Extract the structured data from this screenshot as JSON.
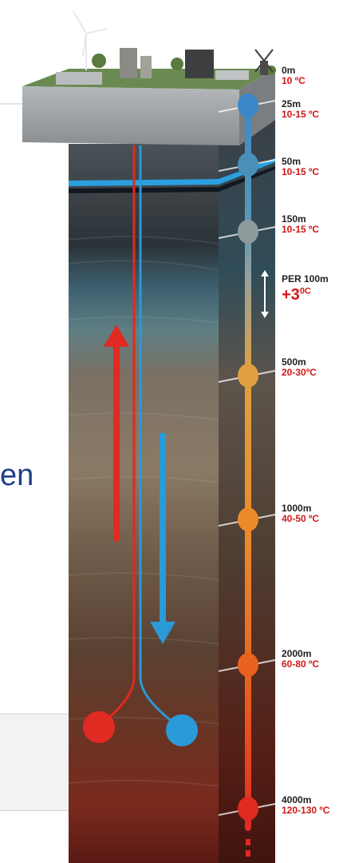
{
  "fragment_text": "en",
  "gradient": {
    "per_label": "PER 100m",
    "delta": "+3",
    "delta_unit": "0C"
  },
  "depth_markers": [
    {
      "depth": "0m",
      "temp": "10 ºC",
      "dot_color": null
    },
    {
      "depth": "25m",
      "temp": "10-15 ºC",
      "dot_color": "#3a86c8"
    },
    {
      "depth": "50m",
      "temp": "10-15 ºC",
      "dot_color": "#4a8fb8"
    },
    {
      "depth": "150m",
      "temp": "10-15 ºC",
      "dot_color": "#8e9a9c"
    },
    {
      "depth": "500m",
      "temp": "20-30ºC",
      "dot_color": "#e0a040"
    },
    {
      "depth": "1000m",
      "temp": "40-50 ºC",
      "dot_color": "#ec8a2a"
    },
    {
      "depth": "2000m",
      "temp": "60-80 ºC",
      "dot_color": "#e8621e"
    },
    {
      "depth": "4000m",
      "temp": "120-130 ºC",
      "dot_color": "#e02a22"
    }
  ],
  "pipes": {
    "injection_color": "#2a9ad8",
    "production_color": "#e02a22"
  }
}
